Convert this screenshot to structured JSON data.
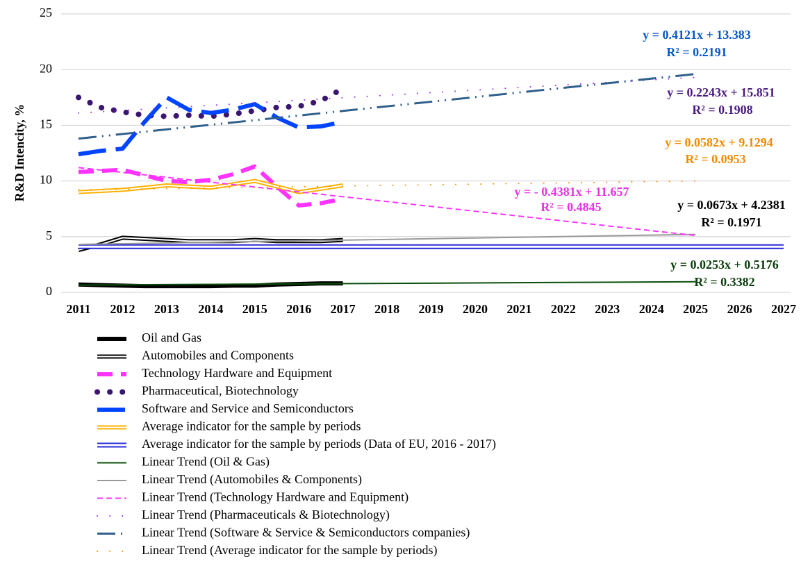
{
  "chart_data": {
    "type": "line",
    "y_label": "R&D Intencity, %",
    "x": [
      2011,
      2011.5,
      2012,
      2012.5,
      2013,
      2013.5,
      2014,
      2014.5,
      2015,
      2015.5,
      2016,
      2016.5,
      2017
    ],
    "xlim": [
      2011,
      2027
    ],
    "xticks": [
      2011,
      2012,
      2013,
      2014,
      2015,
      2016,
      2017,
      2018,
      2019,
      2020,
      2021,
      2022,
      2023,
      2024,
      2025,
      2026,
      2027
    ],
    "ylim": [
      0,
      25
    ],
    "yticks": [
      0,
      5,
      10,
      15,
      20,
      25
    ],
    "grid": true,
    "series": [
      {
        "name": "Oil and Gas",
        "color": "#000000",
        "width": 6,
        "dash": "solid",
        "values": [
          0.7,
          0.65,
          0.6,
          0.55,
          0.55,
          0.55,
          0.55,
          0.6,
          0.6,
          0.7,
          0.75,
          0.8,
          0.8
        ]
      },
      {
        "name": "Automobiles and Components",
        "color": "#000000",
        "width": 6,
        "dash": "double",
        "values": [
          3.8,
          4.3,
          4.9,
          4.8,
          4.7,
          4.6,
          4.6,
          4.6,
          4.7,
          4.6,
          4.6,
          4.6,
          4.7
        ]
      },
      {
        "name": "Technology Hardware and Equipment",
        "color": "#ff33ff",
        "width": 6,
        "dash": "dash",
        "values": [
          10.8,
          10.9,
          11.0,
          10.5,
          10.0,
          9.9,
          10.1,
          10.6,
          11.3,
          9.5,
          7.8,
          8.0,
          8.4
        ]
      },
      {
        "name": "Pharmaceutical, Biotechnology",
        "color": "#3a1670",
        "width": 8,
        "dash": "dot",
        "values": [
          17.5,
          16.6,
          16.2,
          15.9,
          15.8,
          15.9,
          15.8,
          16.0,
          16.3,
          16.6,
          16.7,
          17.2,
          18.3
        ]
      },
      {
        "name": "Software and Service and Semiconductors",
        "color": "#0044ff",
        "width": 6,
        "dash": "longdash",
        "values": [
          12.4,
          12.7,
          12.9,
          15.3,
          17.5,
          16.4,
          16.1,
          16.4,
          16.9,
          15.7,
          14.8,
          14.9,
          15.3
        ]
      },
      {
        "name": "Average indicator for the sample by periods",
        "color": "#ffb000",
        "width": 6,
        "dash": "double",
        "values": [
          9.0,
          9.1,
          9.2,
          9.4,
          9.6,
          9.5,
          9.4,
          9.7,
          10.0,
          9.5,
          9.0,
          9.3,
          9.6
        ]
      },
      {
        "name": "Average indicator for the sample by periods (Data of EU, 2016 - 2017)",
        "color": "#2a2ad8",
        "width": 7,
        "dash": "double",
        "x": [
          2011,
          2027
        ],
        "values": [
          4.1,
          4.1
        ]
      },
      {
        "name": "Linear Trend (Oil & Gas)",
        "color": "#0b4d0b",
        "width": 2,
        "dash": "solid",
        "x": [
          2011,
          2025
        ],
        "values": [
          0.65,
          0.95
        ]
      },
      {
        "name": "Linear Trend (Automobiles & Components)",
        "color": "#999999",
        "width": 2,
        "dash": "solid",
        "x": [
          2011,
          2025
        ],
        "values": [
          4.3,
          5.2
        ]
      },
      {
        "name": "Linear Trend (Technology Hardware and Equipment)",
        "color": "#ff33ff",
        "width": 2,
        "dash": "shortdash",
        "x": [
          2011,
          2025
        ],
        "values": [
          11.2,
          5.1
        ]
      },
      {
        "name": "Linear Trend (Pharmaceuticals & Biotechnology)",
        "color": "#9b30ff",
        "width": 2,
        "dash": "dot",
        "x": [
          2011,
          2025
        ],
        "values": [
          16.1,
          19.3
        ]
      },
      {
        "name": "Linear Trend (Software & Service & Semiconductors companies)",
        "color": "#2f5f8a",
        "width": 3,
        "dash": "dashdot",
        "x": [
          2011,
          2025
        ],
        "values": [
          13.8,
          19.6
        ]
      },
      {
        "name": "Linear Trend (Average indicator for the sample by periods)",
        "color": "#ff8c00",
        "width": 2,
        "dash": "dot",
        "x": [
          2011,
          2025
        ],
        "values": [
          9.2,
          10.0
        ]
      }
    ],
    "annotations": [
      {
        "text": "y = 0.4121x + 13.383",
        "color": "#0a58c8"
      },
      {
        "text": "R² = 0.2191",
        "color": "#0a58c8"
      },
      {
        "text": "y = 0.2243x + 15.851",
        "color": "#4a1a80"
      },
      {
        "text": "R² = 0.1908",
        "color": "#4a1a80"
      },
      {
        "text": "y = 0.0582x + 9.1294",
        "color": "#f28a00"
      },
      {
        "text": "R² = 0.0953",
        "color": "#f28a00"
      },
      {
        "text": "y = - 0.4381x + 11.657",
        "color": "#e633e6"
      },
      {
        "text": "R² = 0.4845",
        "color": "#e633e6"
      },
      {
        "text": "y = 0.0673x + 4.2381",
        "color": "#000000"
      },
      {
        "text": "R² = 0.1971",
        "color": "#000000"
      },
      {
        "text": "y = 0.0253x + 0.5176",
        "color": "#0b3d0b"
      },
      {
        "text": "R² = 0.3382",
        "color": "#0b3d0b"
      }
    ]
  }
}
